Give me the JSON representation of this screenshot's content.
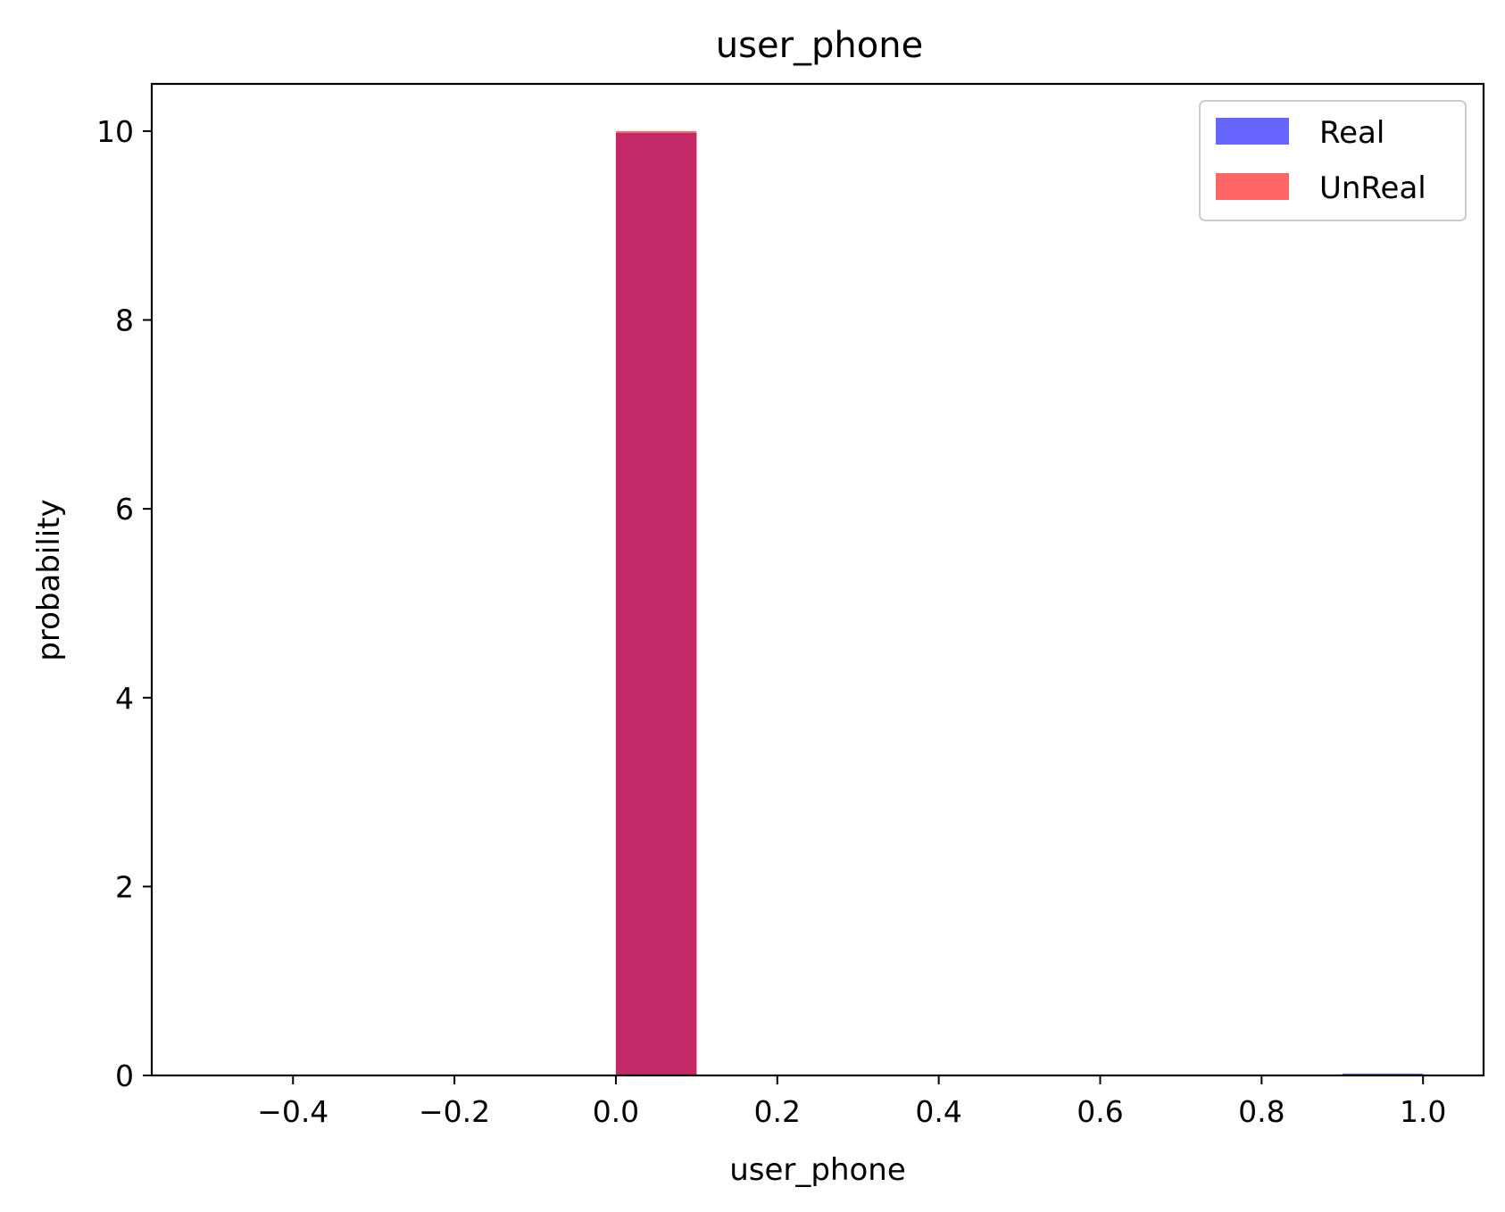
{
  "chart_data": {
    "type": "bar",
    "title": "user_phone",
    "xlabel": "user_phone",
    "ylabel": "probability",
    "xlim": [
      -0.575,
      1.075
    ],
    "ylim": [
      0,
      10.5
    ],
    "xticks": [
      -0.4,
      -0.2,
      0.0,
      0.2,
      0.4,
      0.6,
      0.8,
      1.0
    ],
    "xtick_labels": [
      "−0.4",
      "−0.2",
      "0.0",
      "0.2",
      "0.4",
      "0.6",
      "0.8",
      "1.0"
    ],
    "yticks": [
      0,
      2,
      4,
      6,
      8,
      10
    ],
    "ytick_labels": [
      "0",
      "2",
      "4",
      "6",
      "8",
      "10"
    ],
    "grid": false,
    "legend_position": "top-right",
    "bin_width": 0.1,
    "series": [
      {
        "name": "Real",
        "color": "#0000ff",
        "opacity": 0.6,
        "bins": [
          {
            "x": 0.0,
            "value": 9.98
          },
          {
            "x": 0.9,
            "value": 0.02
          }
        ]
      },
      {
        "name": "UnReal",
        "color": "#ff0000",
        "opacity": 0.6,
        "bins": [
          {
            "x": 0.0,
            "value": 10.0
          }
        ]
      }
    ]
  }
}
